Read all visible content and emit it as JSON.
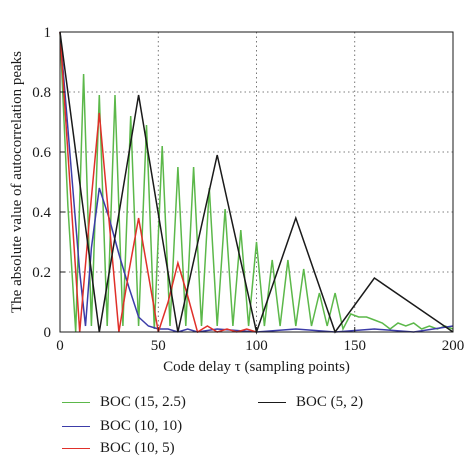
{
  "chart_data": {
    "type": "line",
    "title": "",
    "xlabel": "Code delay τ (sampling points)",
    "ylabel": "The absolute value of autocorrelation peaks",
    "xlim": [
      0,
      200
    ],
    "ylim": [
      0,
      1
    ],
    "x_ticks": [
      "0",
      "50",
      "100",
      "150",
      "200"
    ],
    "y_ticks": [
      "0",
      "0.2",
      "0.4",
      "0.6",
      "0.8",
      "1"
    ],
    "grid": "dotted",
    "legend_position": "below",
    "series": [
      {
        "name": "BOC (15, 2.5)",
        "color": "#5cb84a",
        "x": [
          0,
          4,
          8,
          12,
          16,
          20,
          24,
          28,
          32,
          36,
          40,
          44,
          48,
          52,
          56,
          60,
          64,
          68,
          72,
          76,
          80,
          84,
          88,
          92,
          96,
          100,
          104,
          108,
          112,
          116,
          120,
          124,
          128,
          132,
          136,
          140,
          144,
          148,
          152,
          156,
          160,
          164,
          168,
          172,
          176,
          180,
          184,
          188,
          192,
          196,
          200
        ],
        "y": [
          1.0,
          0.42,
          0.0,
          0.86,
          0.02,
          0.79,
          0.02,
          0.79,
          0.02,
          0.72,
          0.02,
          0.69,
          0.01,
          0.62,
          0.02,
          0.55,
          0.02,
          0.55,
          0.02,
          0.48,
          0.02,
          0.41,
          0.02,
          0.34,
          0.02,
          0.3,
          0.02,
          0.24,
          0.02,
          0.24,
          0.02,
          0.21,
          0.02,
          0.13,
          0.02,
          0.13,
          0.01,
          0.06,
          0.05,
          0.05,
          0.04,
          0.03,
          0.01,
          0.03,
          0.02,
          0.03,
          0.01,
          0.02,
          0.01,
          0.02,
          0.01
        ]
      },
      {
        "name": "BOC (10, 10)",
        "color": "#3c3ca8",
        "x": [
          0,
          5,
          10,
          13,
          16,
          20,
          25,
          30,
          35,
          40,
          45,
          50,
          55,
          60,
          65,
          70,
          80,
          100,
          120,
          140,
          160,
          180,
          200
        ],
        "y": [
          1.0,
          0.6,
          0.2,
          0.02,
          0.28,
          0.48,
          0.38,
          0.26,
          0.15,
          0.05,
          0.02,
          0.01,
          0.01,
          0.0,
          0.01,
          0.0,
          0.01,
          0.0,
          0.01,
          0.0,
          0.01,
          0.0,
          0.02
        ]
      },
      {
        "name": "BOC (10, 5)",
        "color": "#e0302a",
        "x": [
          0,
          5,
          10,
          15,
          20,
          25,
          30,
          35,
          40,
          45,
          50,
          55,
          60,
          65,
          70,
          75,
          80,
          85,
          90,
          95,
          100
        ],
        "y": [
          1.0,
          0.5,
          0.0,
          0.38,
          0.73,
          0.37,
          0.0,
          0.2,
          0.38,
          0.19,
          0.0,
          0.1,
          0.23,
          0.12,
          0.0,
          0.02,
          0.0,
          0.01,
          0.0,
          0.01,
          0.0
        ]
      },
      {
        "name": "BOC (5, 2)",
        "color": "#1a1a1a",
        "x": [
          0,
          20,
          40,
          60,
          80,
          100,
          120,
          140,
          160,
          180,
          200
        ],
        "y": [
          1.0,
          0.0,
          0.79,
          0.0,
          0.59,
          0.0,
          0.38,
          0.0,
          0.18,
          0.09,
          0.0
        ]
      }
    ]
  }
}
